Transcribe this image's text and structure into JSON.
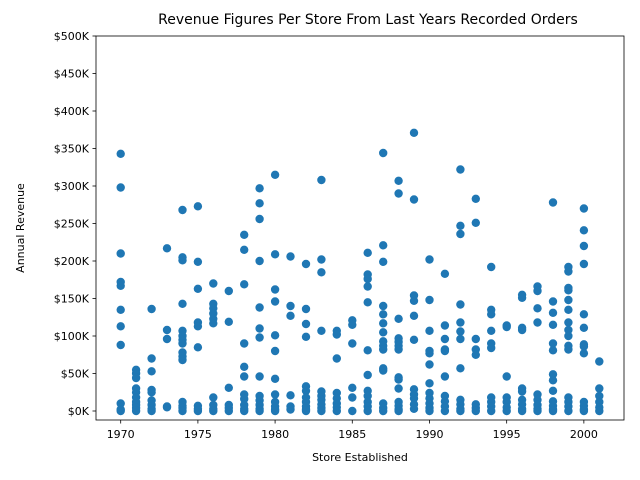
{
  "chart_data": {
    "type": "scatter",
    "title": "Revenue Figures Per Store From Last Years Recorded Orders",
    "xlabel": "Store Established",
    "ylabel": "Annual Revenue",
    "xlim": [
      1968.4,
      2002.6
    ],
    "ylim": [
      -12000,
      500000
    ],
    "x_ticks": [
      1970,
      1975,
      1980,
      1985,
      1990,
      1995,
      2000
    ],
    "y_ticks": [
      0,
      50000,
      100000,
      150000,
      200000,
      250000,
      300000,
      350000,
      400000,
      450000,
      500000
    ],
    "y_tick_labels": [
      "$0K",
      "$50K",
      "$100K",
      "$150K",
      "$200K",
      "$250K",
      "$300K",
      "$350K",
      "$400K",
      "$450K",
      "$500K"
    ],
    "grid": false,
    "marker_color": "#1f77b4",
    "points": [
      [
        1970,
        343000
      ],
      [
        1970,
        298000
      ],
      [
        1970,
        210000
      ],
      [
        1970,
        172000
      ],
      [
        1970,
        167000
      ],
      [
        1970,
        135000
      ],
      [
        1970,
        113000
      ],
      [
        1970,
        88000
      ],
      [
        1970,
        10000
      ],
      [
        1970,
        2000
      ],
      [
        1970,
        0
      ],
      [
        1971,
        55000
      ],
      [
        1971,
        50000
      ],
      [
        1971,
        44000
      ],
      [
        1971,
        30000
      ],
      [
        1971,
        25000
      ],
      [
        1971,
        18000
      ],
      [
        1971,
        12000
      ],
      [
        1971,
        8000
      ],
      [
        1971,
        4000
      ],
      [
        1971,
        0
      ],
      [
        1972,
        136000
      ],
      [
        1972,
        70000
      ],
      [
        1972,
        53000
      ],
      [
        1972,
        28000
      ],
      [
        1972,
        25000
      ],
      [
        1972,
        14000
      ],
      [
        1972,
        8000
      ],
      [
        1972,
        3000
      ],
      [
        1972,
        0
      ],
      [
        1973,
        217000
      ],
      [
        1973,
        108000
      ],
      [
        1973,
        96000
      ],
      [
        1973,
        6000
      ],
      [
        1973,
        5000
      ],
      [
        1974,
        268000
      ],
      [
        1974,
        205000
      ],
      [
        1974,
        201000
      ],
      [
        1974,
        143000
      ],
      [
        1974,
        107000
      ],
      [
        1974,
        100000
      ],
      [
        1974,
        95000
      ],
      [
        1974,
        90000
      ],
      [
        1974,
        78000
      ],
      [
        1974,
        73000
      ],
      [
        1974,
        68000
      ],
      [
        1974,
        12000
      ],
      [
        1974,
        7000
      ],
      [
        1974,
        4000
      ],
      [
        1974,
        0
      ],
      [
        1975,
        273000
      ],
      [
        1975,
        199000
      ],
      [
        1975,
        163000
      ],
      [
        1975,
        118000
      ],
      [
        1975,
        113000
      ],
      [
        1975,
        85000
      ],
      [
        1975,
        7000
      ],
      [
        1975,
        3000
      ],
      [
        1975,
        0
      ],
      [
        1976,
        170000
      ],
      [
        1976,
        143000
      ],
      [
        1976,
        137000
      ],
      [
        1976,
        130000
      ],
      [
        1976,
        123000
      ],
      [
        1976,
        117000
      ],
      [
        1976,
        18000
      ],
      [
        1976,
        8000
      ],
      [
        1976,
        3000
      ],
      [
        1976,
        0
      ],
      [
        1977,
        160000
      ],
      [
        1977,
        119000
      ],
      [
        1977,
        31000
      ],
      [
        1977,
        8000
      ],
      [
        1977,
        4000
      ],
      [
        1977,
        0
      ],
      [
        1978,
        235000
      ],
      [
        1978,
        215000
      ],
      [
        1978,
        169000
      ],
      [
        1978,
        90000
      ],
      [
        1978,
        59000
      ],
      [
        1978,
        46000
      ],
      [
        1978,
        22000
      ],
      [
        1978,
        16000
      ],
      [
        1978,
        8000
      ],
      [
        1978,
        3000
      ],
      [
        1978,
        0
      ],
      [
        1979,
        297000
      ],
      [
        1979,
        277000
      ],
      [
        1979,
        256000
      ],
      [
        1979,
        200000
      ],
      [
        1979,
        138000
      ],
      [
        1979,
        110000
      ],
      [
        1979,
        98000
      ],
      [
        1979,
        46000
      ],
      [
        1979,
        20000
      ],
      [
        1979,
        14000
      ],
      [
        1979,
        8000
      ],
      [
        1979,
        3000
      ],
      [
        1979,
        0
      ],
      [
        1980,
        315000
      ],
      [
        1980,
        209000
      ],
      [
        1980,
        162000
      ],
      [
        1980,
        146000
      ],
      [
        1980,
        101000
      ],
      [
        1980,
        80000
      ],
      [
        1980,
        43000
      ],
      [
        1980,
        22000
      ],
      [
        1980,
        12000
      ],
      [
        1980,
        6000
      ],
      [
        1980,
        2000
      ],
      [
        1980,
        0
      ],
      [
        1981,
        206000
      ],
      [
        1981,
        140000
      ],
      [
        1981,
        127000
      ],
      [
        1981,
        21000
      ],
      [
        1981,
        6000
      ],
      [
        1981,
        2000
      ],
      [
        1982,
        196000
      ],
      [
        1982,
        136000
      ],
      [
        1982,
        116000
      ],
      [
        1982,
        99000
      ],
      [
        1982,
        33000
      ],
      [
        1982,
        27000
      ],
      [
        1982,
        18000
      ],
      [
        1982,
        12000
      ],
      [
        1982,
        6000
      ],
      [
        1982,
        2000
      ],
      [
        1982,
        0
      ],
      [
        1983,
        308000
      ],
      [
        1983,
        202000
      ],
      [
        1983,
        185000
      ],
      [
        1983,
        107000
      ],
      [
        1983,
        26000
      ],
      [
        1983,
        20000
      ],
      [
        1983,
        15000
      ],
      [
        1983,
        9000
      ],
      [
        1983,
        4000
      ],
      [
        1983,
        0
      ],
      [
        1984,
        107000
      ],
      [
        1984,
        102000
      ],
      [
        1984,
        70000
      ],
      [
        1984,
        24000
      ],
      [
        1984,
        17000
      ],
      [
        1984,
        10000
      ],
      [
        1984,
        5000
      ],
      [
        1984,
        0
      ],
      [
        1985,
        121000
      ],
      [
        1985,
        115000
      ],
      [
        1985,
        90000
      ],
      [
        1985,
        31000
      ],
      [
        1985,
        18000
      ],
      [
        1985,
        0
      ],
      [
        1986,
        211000
      ],
      [
        1986,
        182000
      ],
      [
        1986,
        176000
      ],
      [
        1986,
        166000
      ],
      [
        1986,
        145000
      ],
      [
        1986,
        81000
      ],
      [
        1986,
        48000
      ],
      [
        1986,
        27000
      ],
      [
        1986,
        20000
      ],
      [
        1986,
        12000
      ],
      [
        1986,
        6000
      ],
      [
        1986,
        0
      ],
      [
        1987,
        344000
      ],
      [
        1987,
        221000
      ],
      [
        1987,
        199000
      ],
      [
        1987,
        140000
      ],
      [
        1987,
        129000
      ],
      [
        1987,
        117000
      ],
      [
        1987,
        105000
      ],
      [
        1987,
        93000
      ],
      [
        1987,
        87000
      ],
      [
        1987,
        82000
      ],
      [
        1987,
        57000
      ],
      [
        1987,
        54000
      ],
      [
        1987,
        10000
      ],
      [
        1987,
        4000
      ],
      [
        1987,
        0
      ],
      [
        1988,
        307000
      ],
      [
        1988,
        290000
      ],
      [
        1988,
        123000
      ],
      [
        1988,
        97000
      ],
      [
        1988,
        92000
      ],
      [
        1988,
        87000
      ],
      [
        1988,
        82000
      ],
      [
        1988,
        45000
      ],
      [
        1988,
        42000
      ],
      [
        1988,
        30000
      ],
      [
        1988,
        12000
      ],
      [
        1988,
        7000
      ],
      [
        1988,
        2000
      ],
      [
        1988,
        0
      ],
      [
        1989,
        371000
      ],
      [
        1989,
        282000
      ],
      [
        1989,
        154000
      ],
      [
        1989,
        147000
      ],
      [
        1989,
        127000
      ],
      [
        1989,
        95000
      ],
      [
        1989,
        29000
      ],
      [
        1989,
        22000
      ],
      [
        1989,
        17000
      ],
      [
        1989,
        9000
      ],
      [
        1989,
        3000
      ],
      [
        1990,
        202000
      ],
      [
        1990,
        148000
      ],
      [
        1990,
        107000
      ],
      [
        1990,
        80000
      ],
      [
        1990,
        77000
      ],
      [
        1990,
        62000
      ],
      [
        1990,
        37000
      ],
      [
        1990,
        24000
      ],
      [
        1990,
        17000
      ],
      [
        1990,
        10000
      ],
      [
        1990,
        4000
      ],
      [
        1990,
        0
      ],
      [
        1991,
        183000
      ],
      [
        1991,
        114000
      ],
      [
        1991,
        96000
      ],
      [
        1991,
        82000
      ],
      [
        1991,
        80000
      ],
      [
        1991,
        46000
      ],
      [
        1991,
        20000
      ],
      [
        1991,
        13000
      ],
      [
        1991,
        6000
      ],
      [
        1991,
        0
      ],
      [
        1992,
        322000
      ],
      [
        1992,
        247000
      ],
      [
        1992,
        236000
      ],
      [
        1992,
        142000
      ],
      [
        1992,
        118000
      ],
      [
        1992,
        106000
      ],
      [
        1992,
        96000
      ],
      [
        1992,
        57000
      ],
      [
        1992,
        15000
      ],
      [
        1992,
        9000
      ],
      [
        1992,
        3000
      ],
      [
        1992,
        0
      ],
      [
        1993,
        283000
      ],
      [
        1993,
        251000
      ],
      [
        1993,
        96000
      ],
      [
        1993,
        82000
      ],
      [
        1993,
        75000
      ],
      [
        1993,
        9000
      ],
      [
        1993,
        4000
      ],
      [
        1993,
        0
      ],
      [
        1994,
        192000
      ],
      [
        1994,
        135000
      ],
      [
        1994,
        129000
      ],
      [
        1994,
        107000
      ],
      [
        1994,
        90000
      ],
      [
        1994,
        84000
      ],
      [
        1994,
        18000
      ],
      [
        1994,
        12000
      ],
      [
        1994,
        6000
      ],
      [
        1994,
        0
      ],
      [
        1995,
        114000
      ],
      [
        1995,
        112000
      ],
      [
        1995,
        46000
      ],
      [
        1995,
        18000
      ],
      [
        1995,
        12000
      ],
      [
        1995,
        5000
      ],
      [
        1995,
        0
      ],
      [
        1996,
        155000
      ],
      [
        1996,
        151000
      ],
      [
        1996,
        111000
      ],
      [
        1996,
        108000
      ],
      [
        1996,
        30000
      ],
      [
        1996,
        26000
      ],
      [
        1996,
        15000
      ],
      [
        1996,
        9000
      ],
      [
        1996,
        3000
      ],
      [
        1996,
        0
      ],
      [
        1997,
        166000
      ],
      [
        1997,
        160000
      ],
      [
        1997,
        137000
      ],
      [
        1997,
        118000
      ],
      [
        1997,
        22000
      ],
      [
        1997,
        15000
      ],
      [
        1997,
        8000
      ],
      [
        1997,
        3000
      ],
      [
        1997,
        0
      ],
      [
        1998,
        278000
      ],
      [
        1998,
        146000
      ],
      [
        1998,
        131000
      ],
      [
        1998,
        115000
      ],
      [
        1998,
        90000
      ],
      [
        1998,
        81000
      ],
      [
        1998,
        49000
      ],
      [
        1998,
        41000
      ],
      [
        1998,
        27000
      ],
      [
        1998,
        13000
      ],
      [
        1998,
        7000
      ],
      [
        1998,
        2000
      ],
      [
        1998,
        0
      ],
      [
        1999,
        192000
      ],
      [
        1999,
        186000
      ],
      [
        1999,
        164000
      ],
      [
        1999,
        161000
      ],
      [
        1999,
        148000
      ],
      [
        1999,
        135000
      ],
      [
        1999,
        118000
      ],
      [
        1999,
        108000
      ],
      [
        1999,
        100000
      ],
      [
        1999,
        87000
      ],
      [
        1999,
        82000
      ],
      [
        1999,
        18000
      ],
      [
        1999,
        12000
      ],
      [
        1999,
        6000
      ],
      [
        1999,
        0
      ],
      [
        2000,
        270000
      ],
      [
        2000,
        241000
      ],
      [
        2000,
        220000
      ],
      [
        2000,
        196000
      ],
      [
        2000,
        129000
      ],
      [
        2000,
        111000
      ],
      [
        2000,
        89000
      ],
      [
        2000,
        86000
      ],
      [
        2000,
        77000
      ],
      [
        2000,
        12000
      ],
      [
        2000,
        7000
      ],
      [
        2000,
        2000
      ],
      [
        2000,
        0
      ],
      [
        2001,
        66000
      ],
      [
        2001,
        30000
      ],
      [
        2001,
        20000
      ],
      [
        2001,
        12000
      ],
      [
        2001,
        5000
      ],
      [
        2001,
        0
      ]
    ]
  }
}
